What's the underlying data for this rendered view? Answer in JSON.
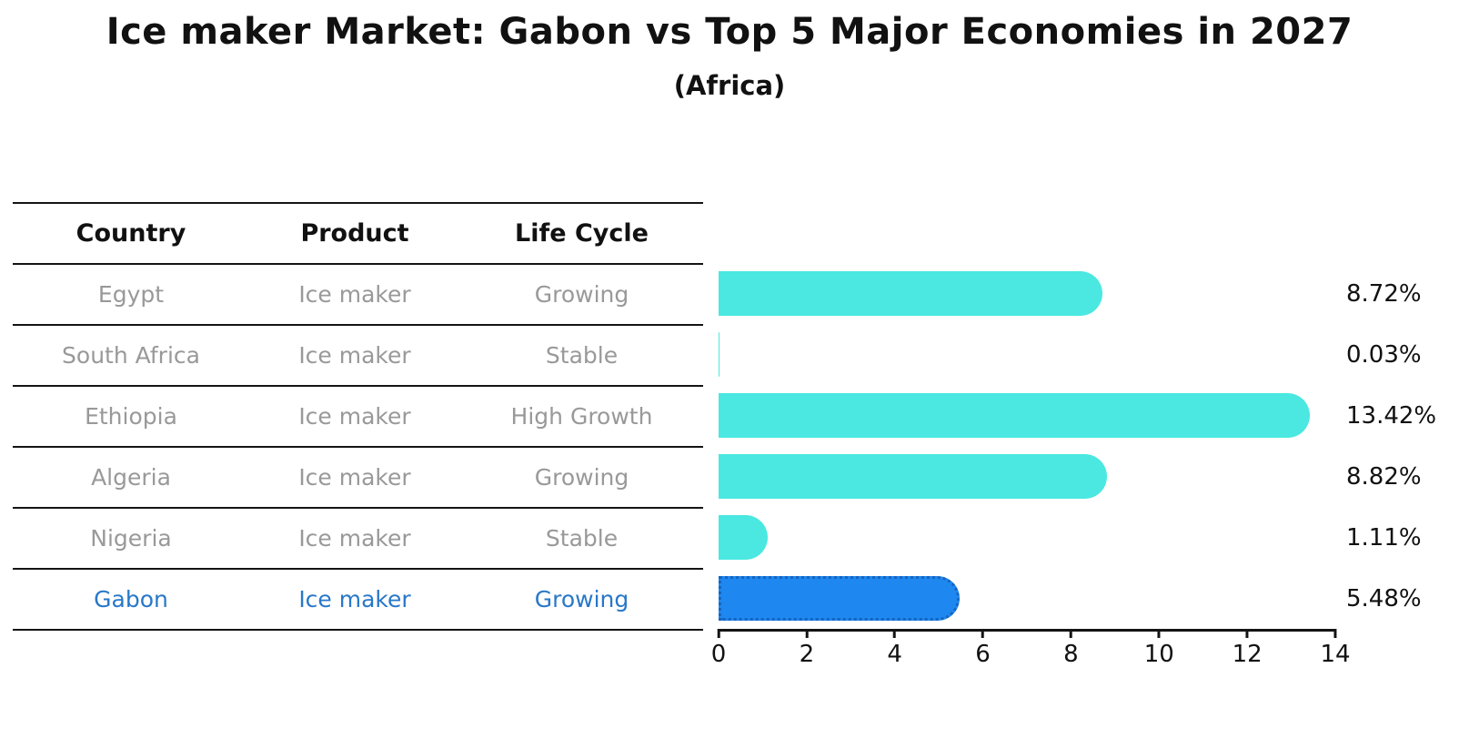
{
  "header": {
    "title": "Ice maker Market: Gabon vs Top 5 Major Economies in 2027",
    "subtitle": "(Africa)"
  },
  "table": {
    "columns": [
      "Country",
      "Product",
      "Life Cycle"
    ],
    "rows": [
      {
        "country": "Egypt",
        "product": "Ice maker",
        "life_cycle": "Growing"
      },
      {
        "country": "South Africa",
        "product": "Ice maker",
        "life_cycle": "Stable"
      },
      {
        "country": "Ethiopia",
        "product": "Ice maker",
        "life_cycle": "High Growth"
      },
      {
        "country": "Algeria",
        "product": "Ice maker",
        "life_cycle": "Growing"
      },
      {
        "country": "Nigeria",
        "product": "Ice maker",
        "life_cycle": "Stable"
      },
      {
        "country": "Gabon",
        "product": "Ice maker",
        "life_cycle": "Growing"
      }
    ]
  },
  "chart_data": {
    "type": "bar",
    "orientation": "horizontal",
    "title": "Ice maker Market: Gabon vs Top 5 Major Economies in 2027",
    "subtitle": "(Africa)",
    "categories": [
      "Egypt",
      "South Africa",
      "Ethiopia",
      "Algeria",
      "Nigeria",
      "Gabon"
    ],
    "values": [
      8.72,
      0.03,
      13.42,
      8.82,
      1.11,
      5.48
    ],
    "value_labels": [
      "8.72%",
      "0.03%",
      "13.42%",
      "8.82%",
      "1.11%",
      "5.48%"
    ],
    "xlim": [
      0,
      14
    ],
    "x_ticks": [
      0,
      2,
      4,
      6,
      8,
      10,
      12,
      14
    ],
    "grid": false,
    "legend": "none",
    "highlight_category": "Gabon",
    "colors": {
      "bar_default": "#4AE8E0",
      "bar_highlight": "#1E87F0",
      "bar_highlight_border": "#1565C0",
      "highlight_text": "#2878C8",
      "table_text": "#999999",
      "heading_text": "#111111",
      "axis": "#141414"
    }
  }
}
